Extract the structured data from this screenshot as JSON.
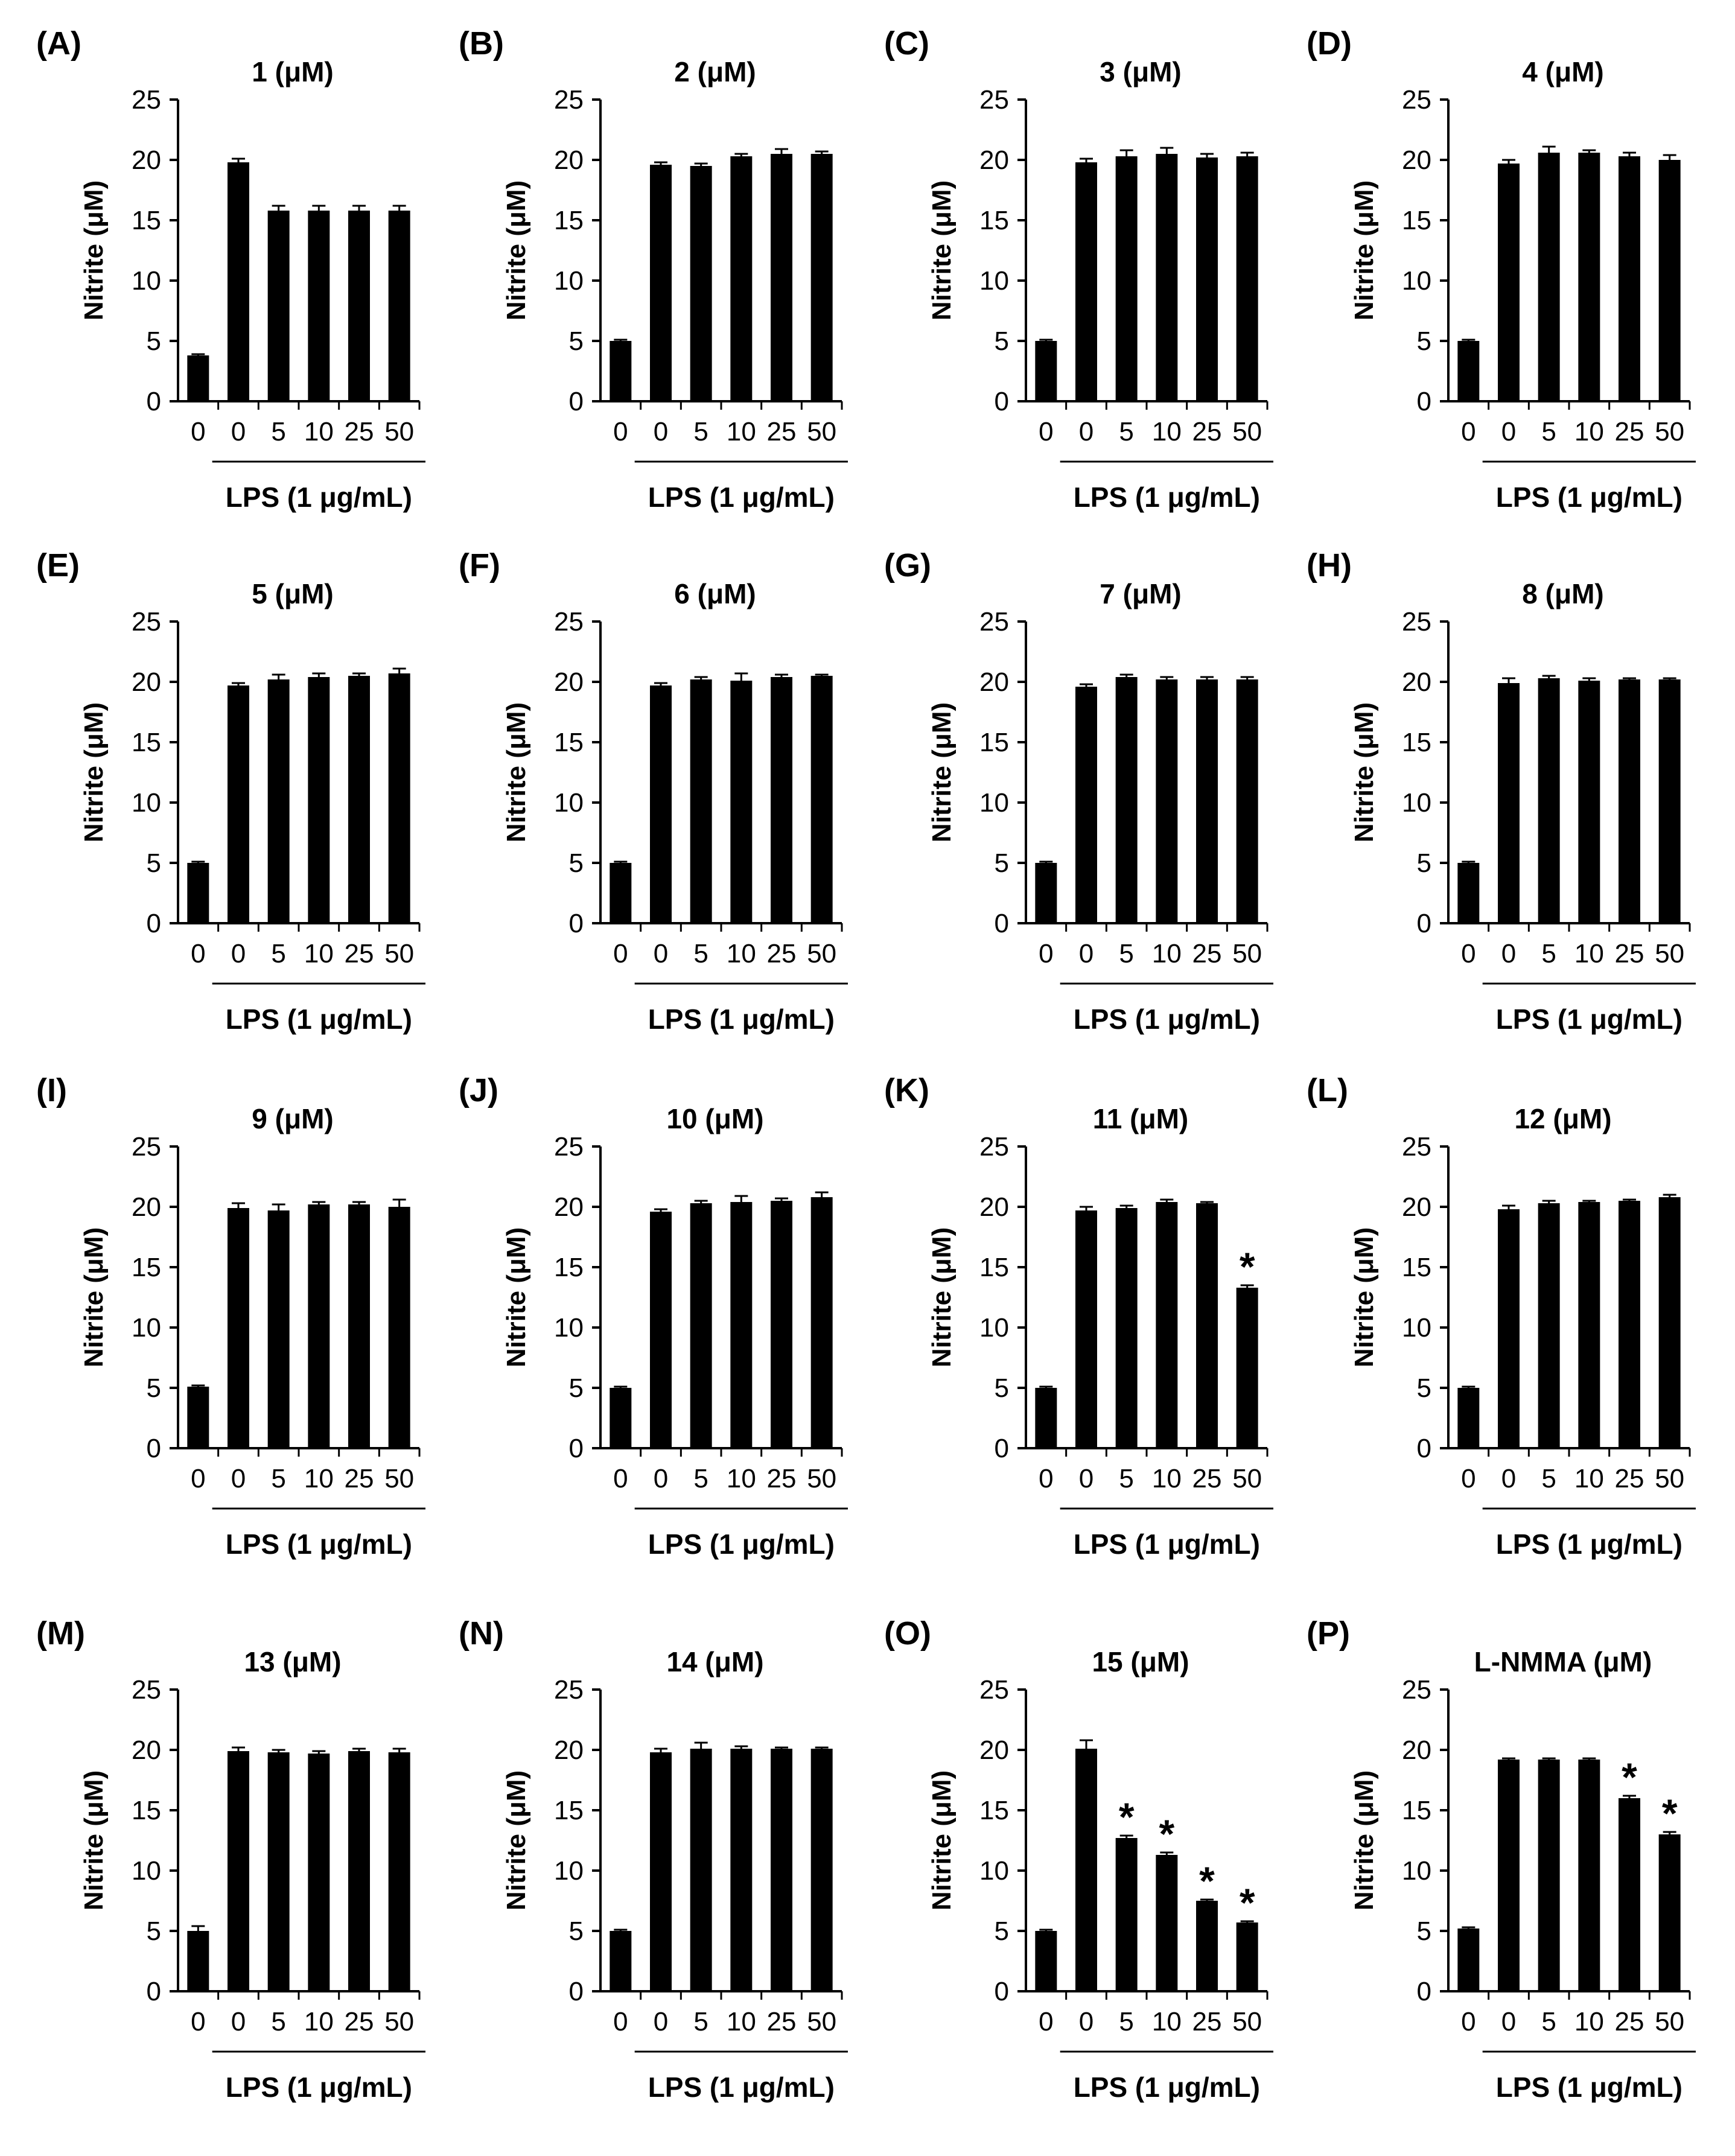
{
  "figure": {
    "background": "#ffffff",
    "bar_color": "#000000"
  },
  "chart_data": [
    {
      "id": "A",
      "panel_label": "(A)",
      "type": "bar",
      "title": "1 (μM)",
      "ylabel": "Nitrite (μM)",
      "ylim": [
        0,
        25
      ],
      "yticks": [
        "0",
        "5",
        "10",
        "15",
        "20",
        "25"
      ],
      "categories": [
        "0",
        "0",
        "5",
        "10",
        "25",
        "50"
      ],
      "values": [
        3.8,
        19.8,
        15.8,
        15.8,
        15.8,
        15.8
      ],
      "errors": [
        0.1,
        0.3,
        0.4,
        0.4,
        0.4,
        0.4
      ],
      "significant": [
        false,
        false,
        false,
        false,
        false,
        false
      ],
      "group_label": "LPS (1 μg/mL)",
      "sig_symbol": "*"
    },
    {
      "id": "B",
      "panel_label": "(B)",
      "type": "bar",
      "title": "2 (μM)",
      "ylabel": "Nitrite (μM)",
      "ylim": [
        0,
        25
      ],
      "yticks": [
        "0",
        "5",
        "10",
        "15",
        "20",
        "25"
      ],
      "categories": [
        "0",
        "0",
        "5",
        "10",
        "25",
        "50"
      ],
      "values": [
        5.0,
        19.6,
        19.5,
        20.3,
        20.5,
        20.5
      ],
      "errors": [
        0.1,
        0.2,
        0.2,
        0.2,
        0.4,
        0.2
      ],
      "significant": [
        false,
        false,
        false,
        false,
        false,
        false
      ],
      "group_label": "LPS (1 μg/mL)",
      "sig_symbol": "*"
    },
    {
      "id": "C",
      "panel_label": "(C)",
      "type": "bar",
      "title": "3 (μM)",
      "ylabel": "Nitrite (μM)",
      "ylim": [
        0,
        25
      ],
      "yticks": [
        "0",
        "5",
        "10",
        "15",
        "20",
        "25"
      ],
      "categories": [
        "0",
        "0",
        "5",
        "10",
        "25",
        "50"
      ],
      "values": [
        5.0,
        19.8,
        20.3,
        20.5,
        20.2,
        20.3
      ],
      "errors": [
        0.1,
        0.3,
        0.5,
        0.5,
        0.3,
        0.3
      ],
      "significant": [
        false,
        false,
        false,
        false,
        false,
        false
      ],
      "group_label": "LPS (1 μg/mL)",
      "sig_symbol": "*"
    },
    {
      "id": "D",
      "panel_label": "(D)",
      "type": "bar",
      "title": "4 (μM)",
      "ylabel": "Nitrite (μM)",
      "ylim": [
        0,
        25
      ],
      "yticks": [
        "0",
        "5",
        "10",
        "15",
        "20",
        "25"
      ],
      "categories": [
        "0",
        "0",
        "5",
        "10",
        "25",
        "50"
      ],
      "values": [
        5.0,
        19.7,
        20.6,
        20.6,
        20.3,
        20.0
      ],
      "errors": [
        0.1,
        0.3,
        0.5,
        0.2,
        0.3,
        0.4
      ],
      "significant": [
        false,
        false,
        false,
        false,
        false,
        false
      ],
      "group_label": "LPS (1 μg/mL)",
      "sig_symbol": "*"
    },
    {
      "id": "E",
      "panel_label": "(E)",
      "type": "bar",
      "title": "5 (μM)",
      "ylabel": "Nitrite (μM)",
      "ylim": [
        0,
        25
      ],
      "yticks": [
        "0",
        "5",
        "10",
        "15",
        "20",
        "25"
      ],
      "categories": [
        "0",
        "0",
        "5",
        "10",
        "25",
        "50"
      ],
      "values": [
        5.0,
        19.7,
        20.2,
        20.4,
        20.5,
        20.7
      ],
      "errors": [
        0.1,
        0.2,
        0.4,
        0.3,
        0.2,
        0.4
      ],
      "significant": [
        false,
        false,
        false,
        false,
        false,
        false
      ],
      "group_label": "LPS (1 μg/mL)",
      "sig_symbol": "*"
    },
    {
      "id": "F",
      "panel_label": "(F)",
      "type": "bar",
      "title": "6 (μM)",
      "ylabel": "Nitrite (μM)",
      "ylim": [
        0,
        25
      ],
      "yticks": [
        "0",
        "5",
        "10",
        "15",
        "20",
        "25"
      ],
      "categories": [
        "0",
        "0",
        "5",
        "10",
        "25",
        "50"
      ],
      "values": [
        5.0,
        19.7,
        20.2,
        20.1,
        20.4,
        20.5
      ],
      "errors": [
        0.1,
        0.2,
        0.2,
        0.6,
        0.2,
        0.1
      ],
      "significant": [
        false,
        false,
        false,
        false,
        false,
        false
      ],
      "group_label": "LPS (1 μg/mL)",
      "sig_symbol": "*"
    },
    {
      "id": "G",
      "panel_label": "(G)",
      "type": "bar",
      "title": "7 (μM)",
      "ylabel": "Nitrite (μM)",
      "ylim": [
        0,
        25
      ],
      "yticks": [
        "0",
        "5",
        "10",
        "15",
        "20",
        "25"
      ],
      "categories": [
        "0",
        "0",
        "5",
        "10",
        "25",
        "50"
      ],
      "values": [
        5.0,
        19.6,
        20.4,
        20.2,
        20.2,
        20.2
      ],
      "errors": [
        0.1,
        0.2,
        0.2,
        0.2,
        0.2,
        0.2
      ],
      "significant": [
        false,
        false,
        false,
        false,
        false,
        false
      ],
      "group_label": "LPS (1 μg/mL)",
      "sig_symbol": "*"
    },
    {
      "id": "H",
      "panel_label": "(H)",
      "type": "bar",
      "title": "8 (μM)",
      "ylabel": "Nitrite (μM)",
      "ylim": [
        0,
        25
      ],
      "yticks": [
        "0",
        "5",
        "10",
        "15",
        "20",
        "25"
      ],
      "categories": [
        "0",
        "0",
        "5",
        "10",
        "25",
        "50"
      ],
      "values": [
        5.0,
        19.9,
        20.3,
        20.1,
        20.2,
        20.2
      ],
      "errors": [
        0.1,
        0.4,
        0.2,
        0.2,
        0.1,
        0.1
      ],
      "significant": [
        false,
        false,
        false,
        false,
        false,
        false
      ],
      "group_label": "LPS (1 μg/mL)",
      "sig_symbol": "*"
    },
    {
      "id": "I",
      "panel_label": "(I)",
      "type": "bar",
      "title": "9 (μM)",
      "ylabel": "Nitrite (μM)",
      "ylim": [
        0,
        25
      ],
      "yticks": [
        "0",
        "5",
        "10",
        "15",
        "20",
        "25"
      ],
      "categories": [
        "0",
        "0",
        "5",
        "10",
        "25",
        "50"
      ],
      "values": [
        5.1,
        19.9,
        19.7,
        20.2,
        20.2,
        20.0
      ],
      "errors": [
        0.1,
        0.4,
        0.5,
        0.2,
        0.2,
        0.6
      ],
      "significant": [
        false,
        false,
        false,
        false,
        false,
        false
      ],
      "group_label": "LPS (1 μg/mL)",
      "sig_symbol": "*"
    },
    {
      "id": "J",
      "panel_label": "(J)",
      "type": "bar",
      "title": "10 (μM)",
      "ylabel": "Nitrite (μM)",
      "ylim": [
        0,
        25
      ],
      "yticks": [
        "0",
        "5",
        "10",
        "15",
        "20",
        "25"
      ],
      "categories": [
        "0",
        "0",
        "5",
        "10",
        "25",
        "50"
      ],
      "values": [
        5.0,
        19.6,
        20.3,
        20.4,
        20.5,
        20.8
      ],
      "errors": [
        0.1,
        0.2,
        0.2,
        0.5,
        0.2,
        0.4
      ],
      "significant": [
        false,
        false,
        false,
        false,
        false,
        false
      ],
      "group_label": "LPS (1 μg/mL)",
      "sig_symbol": "*"
    },
    {
      "id": "K",
      "panel_label": "(K)",
      "type": "bar",
      "title": "11 (μM)",
      "ylabel": "Nitrite (μM)",
      "ylim": [
        0,
        25
      ],
      "yticks": [
        "0",
        "5",
        "10",
        "15",
        "20",
        "25"
      ],
      "categories": [
        "0",
        "0",
        "5",
        "10",
        "25",
        "50"
      ],
      "values": [
        5.0,
        19.7,
        19.9,
        20.4,
        20.3,
        13.3
      ],
      "errors": [
        0.1,
        0.3,
        0.2,
        0.2,
        0.1,
        0.2
      ],
      "significant": [
        false,
        false,
        false,
        false,
        false,
        true
      ],
      "group_label": "LPS (1 μg/mL)",
      "sig_symbol": "*"
    },
    {
      "id": "L",
      "panel_label": "(L)",
      "type": "bar",
      "title": "12 (μM)",
      "ylabel": "Nitrite (μM)",
      "ylim": [
        0,
        25
      ],
      "yticks": [
        "0",
        "5",
        "10",
        "15",
        "20",
        "25"
      ],
      "categories": [
        "0",
        "0",
        "5",
        "10",
        "25",
        "50"
      ],
      "values": [
        5.0,
        19.8,
        20.3,
        20.4,
        20.5,
        20.8
      ],
      "errors": [
        0.1,
        0.3,
        0.2,
        0.1,
        0.1,
        0.2
      ],
      "significant": [
        false,
        false,
        false,
        false,
        false,
        false
      ],
      "group_label": "LPS (1 μg/mL)",
      "sig_symbol": "*"
    },
    {
      "id": "M",
      "panel_label": "(M)",
      "type": "bar",
      "title": "13 (μM)",
      "ylabel": "Nitrite (μM)",
      "ylim": [
        0,
        25
      ],
      "yticks": [
        "0",
        "5",
        "10",
        "15",
        "20",
        "25"
      ],
      "categories": [
        "0",
        "0",
        "5",
        "10",
        "25",
        "50"
      ],
      "values": [
        5.0,
        19.9,
        19.8,
        19.7,
        19.9,
        19.8
      ],
      "errors": [
        0.4,
        0.3,
        0.2,
        0.2,
        0.2,
        0.3
      ],
      "significant": [
        false,
        false,
        false,
        false,
        false,
        false
      ],
      "group_label": "LPS (1 μg/mL)",
      "sig_symbol": "*"
    },
    {
      "id": "N",
      "panel_label": "(N)",
      "type": "bar",
      "title": "14 (μM)",
      "ylabel": "Nitrite (μM)",
      "ylim": [
        0,
        25
      ],
      "yticks": [
        "0",
        "5",
        "10",
        "15",
        "20",
        "25"
      ],
      "categories": [
        "0",
        "0",
        "5",
        "10",
        "25",
        "50"
      ],
      "values": [
        5.0,
        19.8,
        20.1,
        20.1,
        20.1,
        20.1
      ],
      "errors": [
        0.1,
        0.3,
        0.5,
        0.2,
        0.1,
        0.1
      ],
      "significant": [
        false,
        false,
        false,
        false,
        false,
        false
      ],
      "group_label": "LPS (1 μg/mL)",
      "sig_symbol": "*"
    },
    {
      "id": "O",
      "panel_label": "(O)",
      "type": "bar",
      "title": "15 (μM)",
      "ylabel": "Nitrite (μM)",
      "ylim": [
        0,
        25
      ],
      "yticks": [
        "0",
        "5",
        "10",
        "15",
        "20",
        "25"
      ],
      "categories": [
        "0",
        "0",
        "5",
        "10",
        "25",
        "50"
      ],
      "values": [
        5.0,
        20.1,
        12.7,
        11.3,
        7.5,
        5.7
      ],
      "errors": [
        0.1,
        0.7,
        0.2,
        0.2,
        0.1,
        0.1
      ],
      "significant": [
        false,
        false,
        true,
        true,
        true,
        true
      ],
      "group_label": "LPS (1 μg/mL)",
      "sig_symbol": "*"
    },
    {
      "id": "P",
      "panel_label": "(P)",
      "type": "bar",
      "title": "L-NMMA (μM)",
      "ylabel": "Nitrite (μM)",
      "ylim": [
        0,
        25
      ],
      "yticks": [
        "0",
        "5",
        "10",
        "15",
        "20",
        "25"
      ],
      "categories": [
        "0",
        "0",
        "5",
        "10",
        "25",
        "50"
      ],
      "values": [
        5.2,
        19.2,
        19.2,
        19.2,
        16.0,
        13.0
      ],
      "errors": [
        0.1,
        0.1,
        0.1,
        0.1,
        0.2,
        0.2
      ],
      "significant": [
        false,
        false,
        false,
        false,
        true,
        true
      ],
      "group_label": "LPS (1 μg/mL)",
      "sig_symbol": "*"
    }
  ]
}
